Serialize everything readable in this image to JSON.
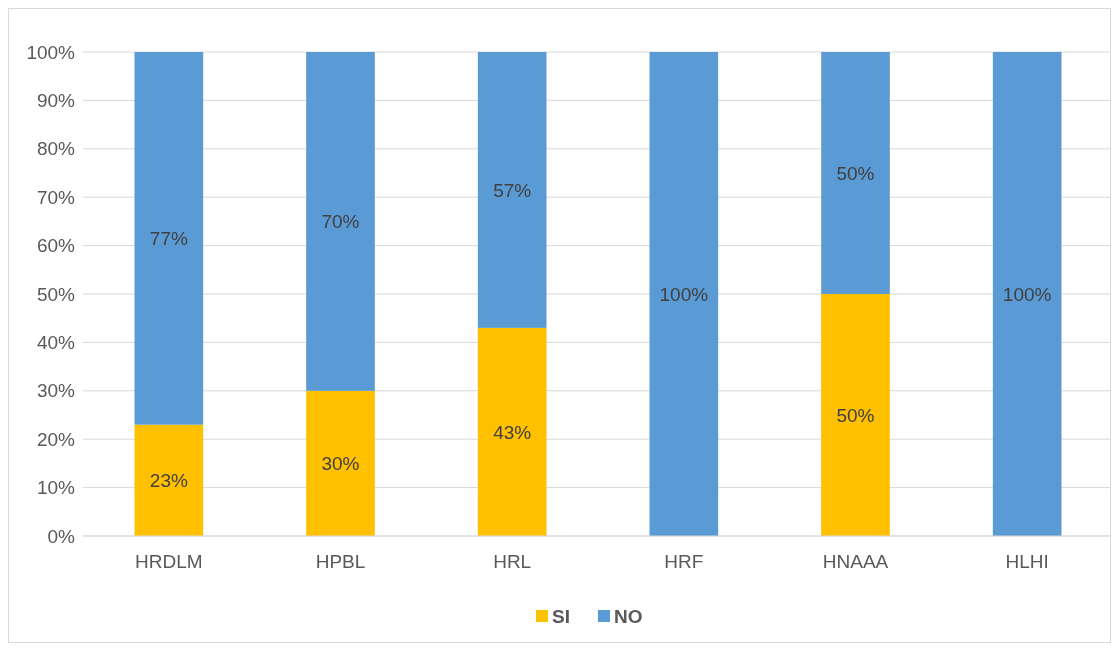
{
  "chart_data": {
    "type": "bar",
    "stacked": true,
    "categories": [
      "HRDLM",
      "HPBL",
      "HRL",
      "HRF",
      "HNAAA",
      "HLHI"
    ],
    "series": [
      {
        "name": "SI",
        "color": "#ffc000",
        "values": [
          23,
          30,
          43,
          0,
          50,
          0
        ],
        "value_labels": [
          "23%",
          "30%",
          "43%",
          null,
          "50%",
          null
        ]
      },
      {
        "name": "NO",
        "color": "#5b9bd5",
        "values": [
          77,
          70,
          57,
          100,
          50,
          100
        ],
        "value_labels": [
          "77%",
          "70%",
          "57%",
          "100%",
          "50%",
          "100%"
        ]
      }
    ],
    "ylim": [
      0,
      100
    ],
    "yticks": [
      {
        "value": 0,
        "label": "0%"
      },
      {
        "value": 10,
        "label": "10%"
      },
      {
        "value": 20,
        "label": "20%"
      },
      {
        "value": 30,
        "label": "30%"
      },
      {
        "value": 40,
        "label": "40%"
      },
      {
        "value": 50,
        "label": "50%"
      },
      {
        "value": 60,
        "label": "60%"
      },
      {
        "value": 70,
        "label": "70%"
      },
      {
        "value": 80,
        "label": "80%"
      },
      {
        "value": 90,
        "label": "90%"
      },
      {
        "value": 100,
        "label": "100%"
      }
    ],
    "grid": "y",
    "legend": "bottom"
  }
}
